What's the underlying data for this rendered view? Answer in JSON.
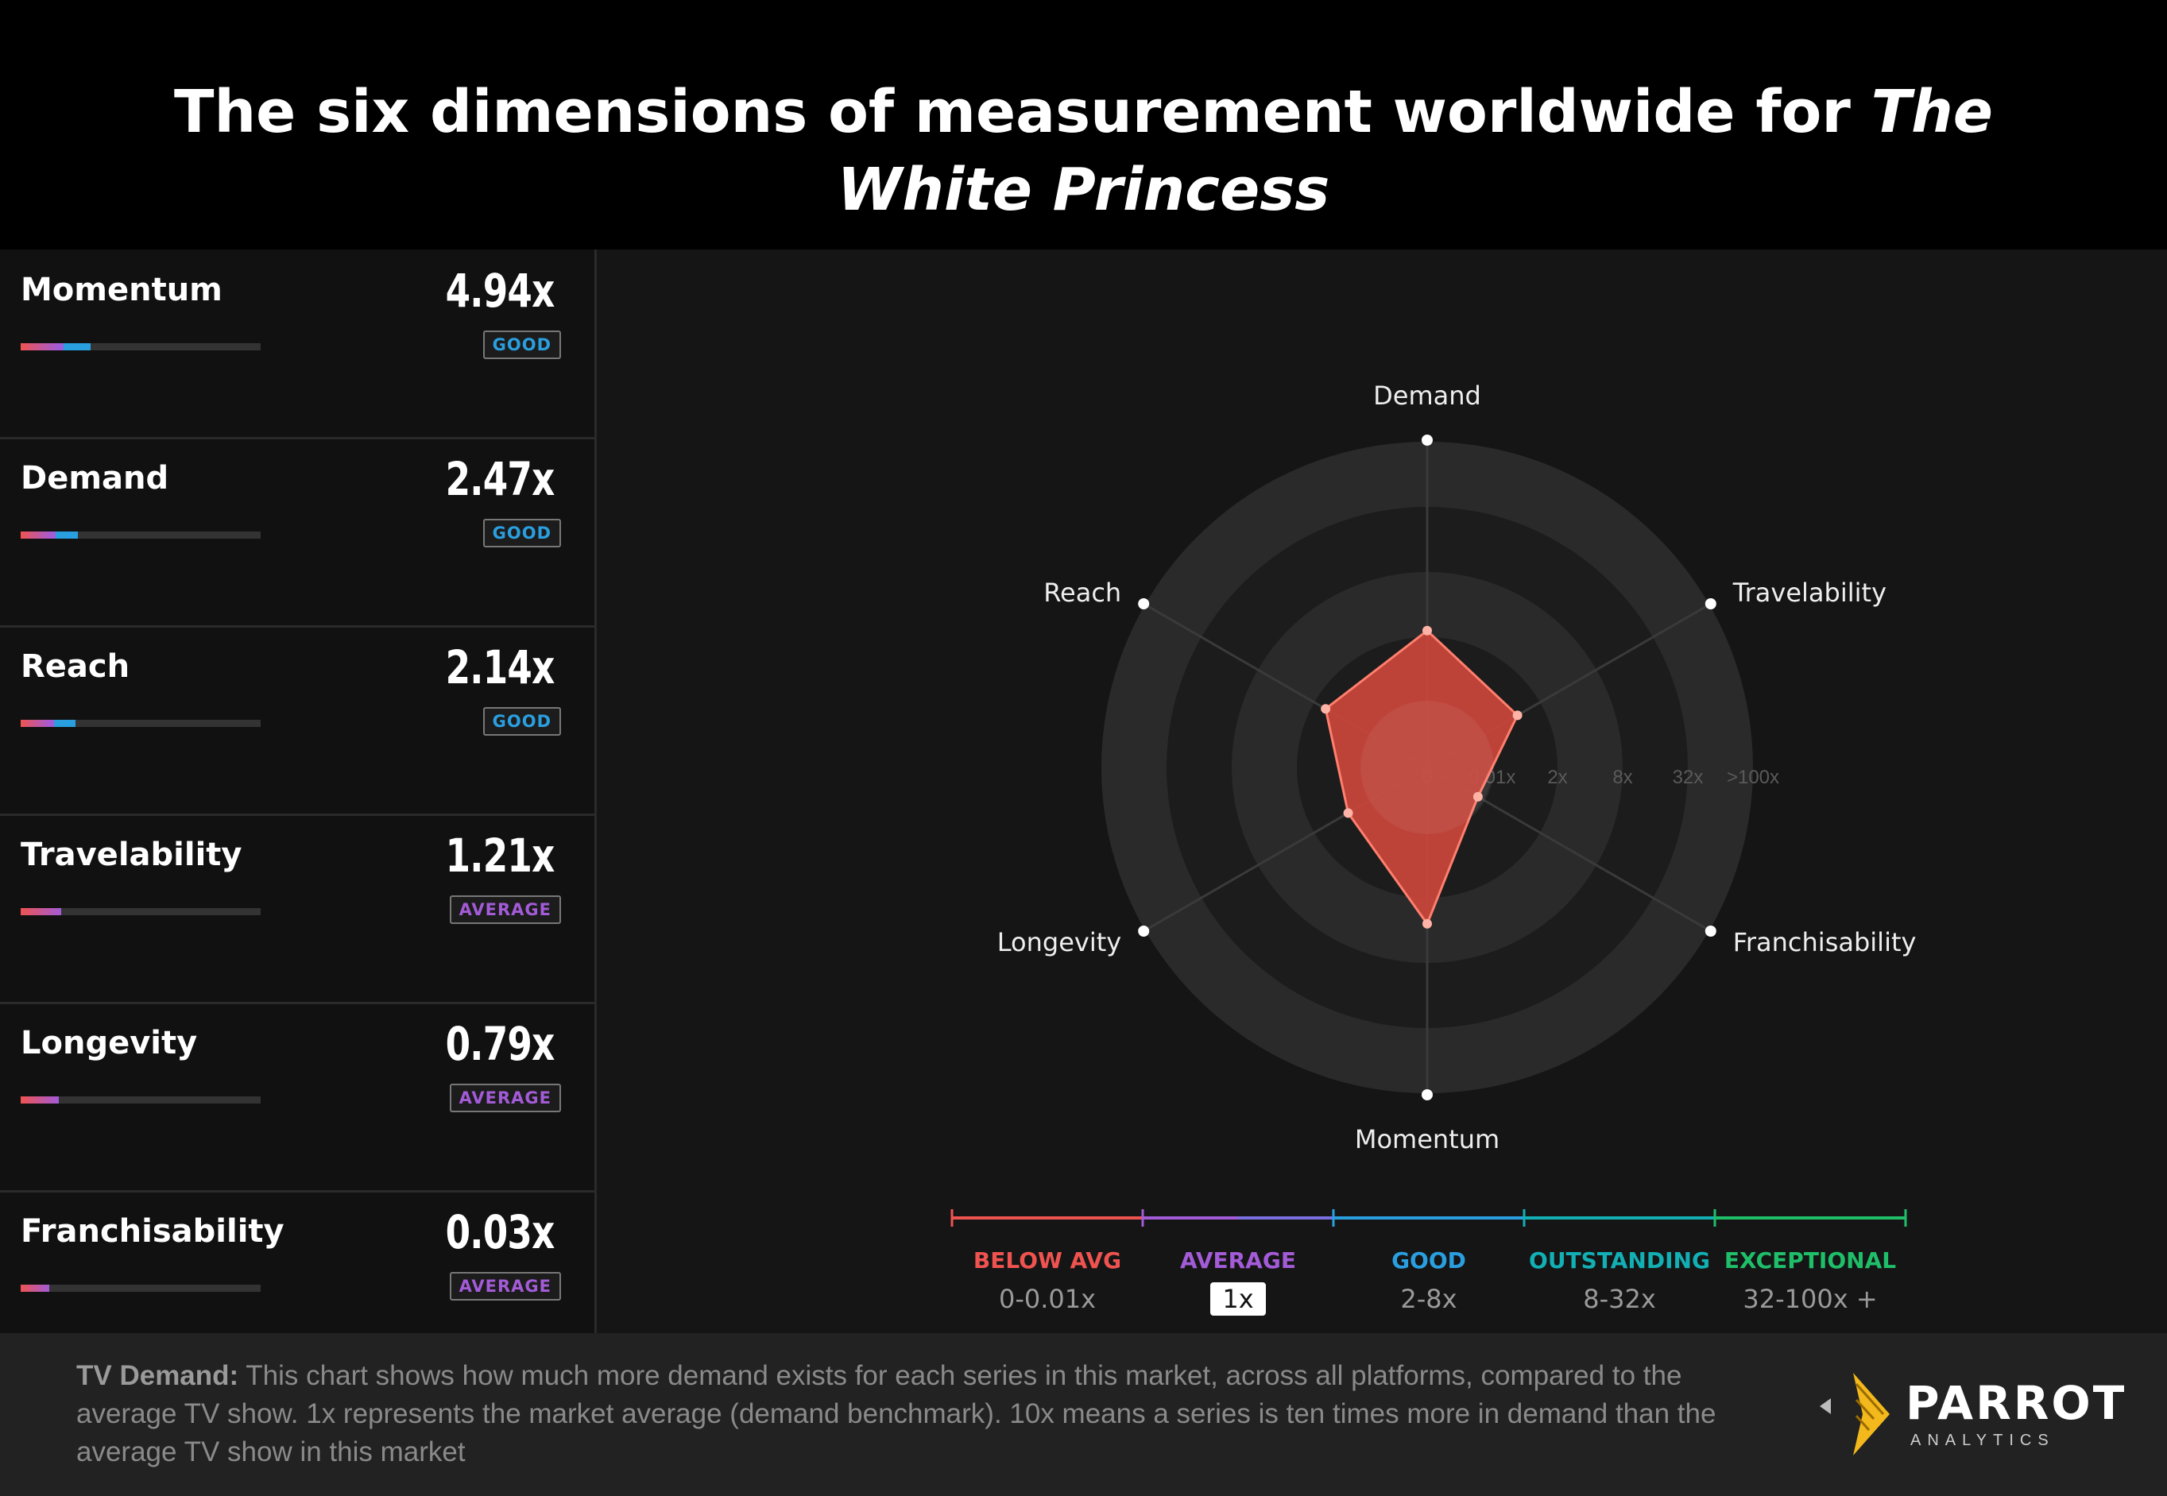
{
  "header": {
    "title_prefix": "The six dimensions of measurement worldwide for ",
    "title_emphasis": "The White Princess"
  },
  "colors": {
    "below_avg": "#ef5350",
    "average": "#a35bd8",
    "good": "#2a9fe0",
    "outstanding": "#12b0b4",
    "exceptional": "#1fbf6a"
  },
  "metrics": [
    {
      "name": "Momentum",
      "value": "4.94x",
      "rating": "GOOD",
      "rating_color": "#2a9fe0",
      "bar_fraction": 0.29
    },
    {
      "name": "Demand",
      "value": "2.47x",
      "rating": "GOOD",
      "rating_color": "#2a9fe0",
      "bar_fraction": 0.24
    },
    {
      "name": "Reach",
      "value": "2.14x",
      "rating": "GOOD",
      "rating_color": "#2a9fe0",
      "bar_fraction": 0.23
    },
    {
      "name": "Travelability",
      "value": "1.21x",
      "rating": "AVERAGE",
      "rating_color": "#a35bd8",
      "bar_fraction": 0.17
    },
    {
      "name": "Longevity",
      "value": "0.79x",
      "rating": "AVERAGE",
      "rating_color": "#a35bd8",
      "bar_fraction": 0.16
    },
    {
      "name": "Franchisability",
      "value": "0.03x",
      "rating": "AVERAGE",
      "rating_color": "#a35bd8",
      "bar_fraction": 0.12
    }
  ],
  "chart_data": {
    "type": "radar",
    "axes": [
      "Demand",
      "Travelability",
      "Franchisability",
      "Momentum",
      "Longevity",
      "Reach"
    ],
    "radial_tick_labels": [
      "0",
      "0.01x",
      "2x",
      "8x",
      "32x",
      ">100x"
    ],
    "radial_tick_positions": [
      0,
      1,
      2,
      3,
      4,
      5
    ],
    "rmax": 5,
    "series": [
      {
        "values_multiplier": [
          2.47,
          1.21,
          0.03,
          4.94,
          0.79,
          2.14
        ],
        "radial_position": [
          2.1,
          1.6,
          0.9,
          2.4,
          1.4,
          1.8
        ]
      }
    ],
    "legend": {
      "tiers": [
        {
          "label": "BELOW AVG",
          "range": "0-0.01x",
          "color": "#ef5350"
        },
        {
          "label": "AVERAGE",
          "range": "1x",
          "color": "#a35bd8"
        },
        {
          "label": "GOOD",
          "range": "2-8x",
          "color": "#2a9fe0"
        },
        {
          "label": "OUTSTANDING",
          "range": "8-32x",
          "color": "#12b0b4"
        },
        {
          "label": "EXCEPTIONAL",
          "range": "32-100x +",
          "color": "#1fbf6a"
        }
      ]
    }
  },
  "footer": {
    "label": "TV Demand:",
    "text": " This chart shows how much more demand exists for each series in this market, across all platforms, compared to the average TV show. 1x represents the market average (demand benchmark). 10x means a series is ten times more in demand than the average TV show in this market"
  },
  "logo": {
    "name": "PARROT",
    "sub": "ANALYTICS"
  }
}
